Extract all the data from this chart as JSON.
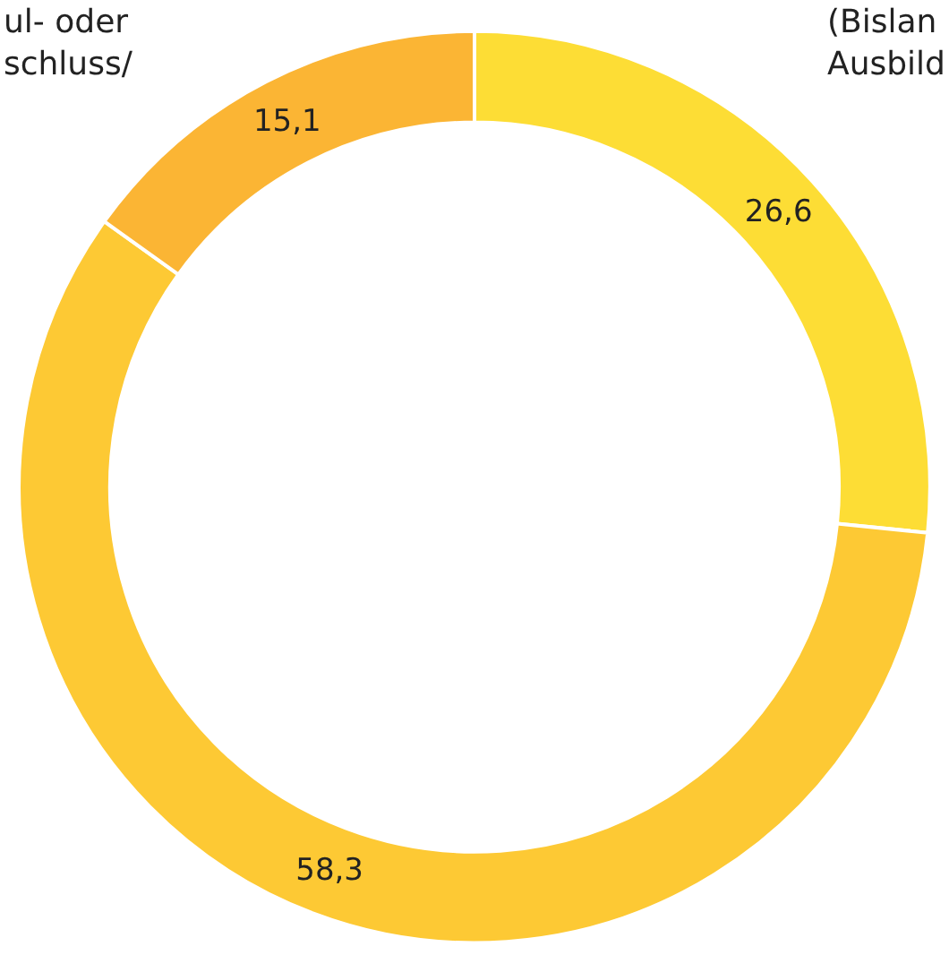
{
  "chart_data": {
    "type": "donut",
    "categories": [
      "(Bislan\nAusbild",
      null,
      "ul- oder\nschluss/"
    ],
    "values": [
      26.6,
      58.3,
      15.1
    ],
    "value_labels": [
      "26,6",
      "58,3",
      "15,1"
    ],
    "colors": [
      "#fddd35",
      "#fdc934",
      "#fbb534"
    ],
    "legend": false
  }
}
